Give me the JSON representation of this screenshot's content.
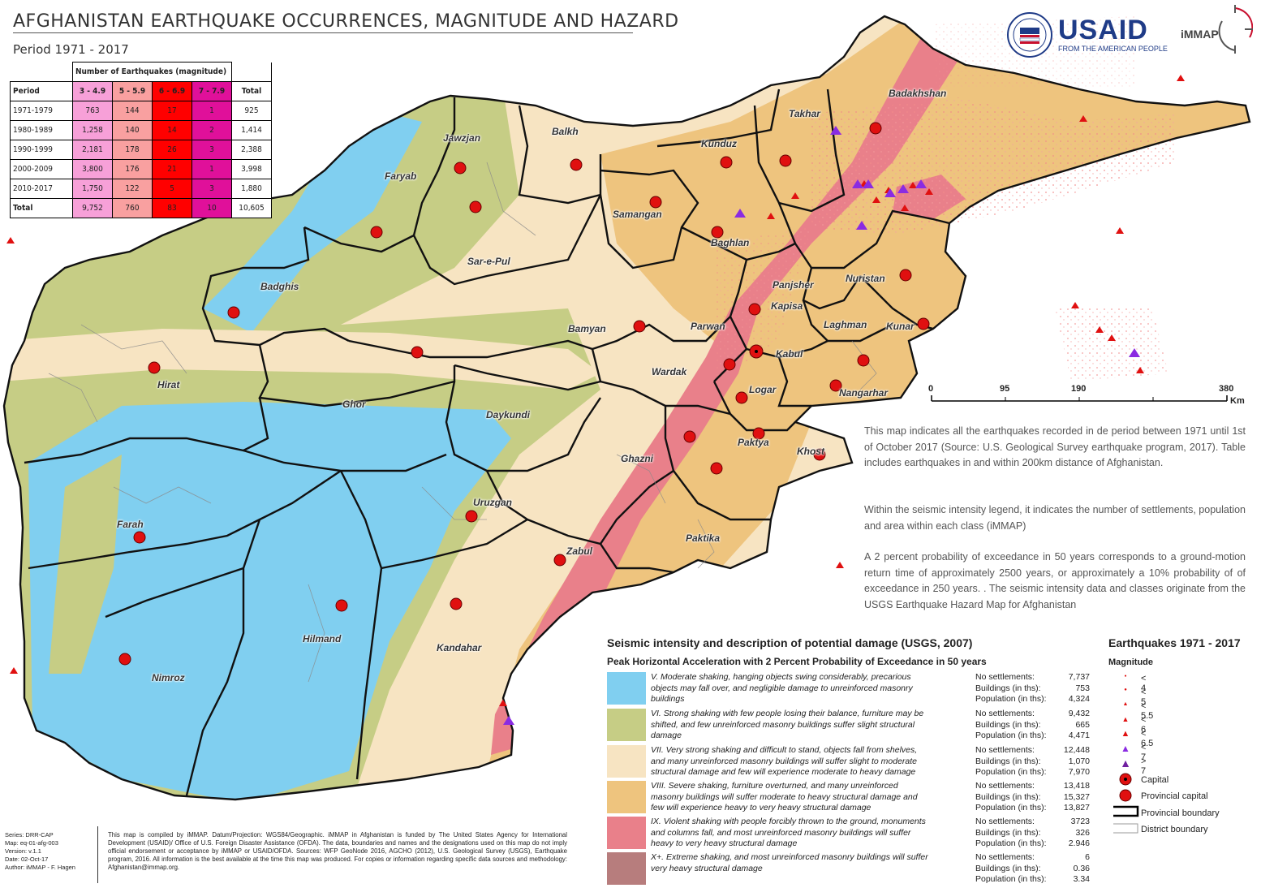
{
  "header": {
    "title": "AFGHANISTAN EARTHQUAKE OCCURRENCES, MAGNITUDE AND HAZARD",
    "period": "Period 1971 - 2017"
  },
  "logos": {
    "usaid": "USAID",
    "usaid_sub": "FROM THE AMERICAN PEOPLE",
    "immap": "iMMAP"
  },
  "table": {
    "group_header": "Number of Earthquakes (magnitude)",
    "columns": [
      "Period",
      "3 - 4.9",
      "5 - 5.9",
      "6 - 6.9",
      "7 - 7.9",
      "Total"
    ],
    "rows": [
      [
        "1971-1979",
        "763",
        "144",
        "17",
        "1",
        "925"
      ],
      [
        "1980-1989",
        "1,258",
        "140",
        "14",
        "2",
        "1,414"
      ],
      [
        "1990-1999",
        "2,181",
        "178",
        "26",
        "3",
        "2,388"
      ],
      [
        "2000-2009",
        "3,800",
        "176",
        "21",
        "1",
        "3,998"
      ],
      [
        "2010-2017",
        "1,750",
        "122",
        "5",
        "3",
        "1,880"
      ],
      [
        "Total",
        "9,752",
        "760",
        "83",
        "10",
        "10,605"
      ]
    ],
    "column_colors": [
      "#ffffff",
      "#f7a0d8",
      "#f9a0a0",
      "#ff0000",
      "#e0109a",
      "#ffffff"
    ]
  },
  "provinces": [
    "Badakhshan",
    "Takhar",
    "Kunduz",
    "Balkh",
    "Jawzjan",
    "Faryab",
    "Samangan",
    "Baghlan",
    "Sar-e-Pul",
    "Badghis",
    "Panjsher",
    "Kapisa",
    "Nuristan",
    "Bamyan",
    "Parwan",
    "Laghman",
    "Kunar",
    "Kabul",
    "Hirat",
    "Wardak",
    "Logar",
    "Nangarhar",
    "Ghor",
    "Daykundi",
    "Paktya",
    "Khost",
    "Ghazni",
    "Uruzgan",
    "Farah",
    "Paktika",
    "Zabul",
    "Hilmand",
    "Kandahar",
    "Nimroz"
  ],
  "scale": {
    "ticks": [
      "0",
      "95",
      "190",
      "380"
    ],
    "unit": "Km"
  },
  "notes": [
    "This map indicates all the earthquakes recorded in de period between 1971 until 1st of October 2017 (Source: U.S. Geological Survey earthquake program, 2017). Table includes earthquakes in and within 200km distance of Afghanistan.",
    "Within the seismic intensity legend, it indicates the number of settlements, population and area within each class (iMMAP)",
    "A 2 percent probability of exceedance in 50 years corresponds to a ground-motion return time of approximately 2500 years, or approximately a 10% probability of of exceedance in 250 years. . The seismic intensity data and classes originate from the USGS Earthquake Hazard Map for Afghanistan"
  ],
  "intensity_legend": {
    "title": "Seismic intensity and description of potential damage (USGS, 2007)",
    "subtitle": "Peak Horizontal Acceleration with 2 Percent Probability of Exceedance in 50 years",
    "classes": [
      {
        "color": "#80cff0",
        "desc": "V. Moderate shaking, hanging objects swing considerably, precarious objects may fall over, and negligible damage to unreinforced masonry buildings",
        "settlements": "7,737",
        "buildings": "753",
        "population": "4,324"
      },
      {
        "color": "#c6cd85",
        "desc": "VI. Strong shaking with few people losing their balance, furniture may be shifted, and few unreinforced masonry buildings suffer slight structural damage",
        "settlements": "9,432",
        "buildings": "665",
        "population": "4,471"
      },
      {
        "color": "#f7e4c2",
        "desc": "VII. Very strong shaking and difficult to stand, objects fall from shelves, and many unreinforced masonry buildings will suffer slight to moderate structural damage and few will experience moderate to heavy damage",
        "settlements": "12,448",
        "buildings": "1,070",
        "population": "7,970"
      },
      {
        "color": "#eec47e",
        "desc": "VIII. Severe shaking, furniture overturned, and many unreinforced masonry buildings will suffer moderate to heavy structural damage and few will experience heavy to very heavy structural damage",
        "settlements": "13,418",
        "buildings": "15,327",
        "population": "13,827"
      },
      {
        "color": "#e9808a",
        "desc": "IX. Violent shaking with people forcibly thrown to the ground, monuments and columns fall, and most unreinforced masonry buildings will suffer heavy to very heavy structural damage",
        "settlements": "3723",
        "buildings": "326",
        "population": "2.946"
      },
      {
        "color": "#b77d7d",
        "desc": "X+. Extreme shaking, and most unreinforced masonry buildings will suffer very heavy structural damage",
        "settlements": "6",
        "buildings": "0.36",
        "population": "3.34"
      }
    ],
    "stat_labels": {
      "settlements": "No settlements:",
      "buildings": "Buildings (in ths):",
      "population": "Population (in ths):"
    }
  },
  "eq_legend": {
    "title": "Earthquakes 1971 - 2017",
    "magnitude_label": "Magnitude",
    "items": [
      "< 4",
      "< 5",
      "< 5.5",
      "< 6",
      "< 6.5",
      "< 7",
      "> 7"
    ],
    "symbols": [
      "Capital",
      "Provincial capital",
      "Provincial boundary",
      "District boundary"
    ]
  },
  "footer": {
    "meta": [
      "Series: DRR-CAP",
      "Map: eq-01-afg-003",
      "Version: v.1.1",
      "Date: 02-Oct-17",
      "Author: iMMAP - F. Hagen"
    ],
    "text": "This map is compiled by iMMAP. Datum/Projection: WGS84/Geographic. iMMAP in Afghanistan is funded by The United States Agency for International Development (USAID)/ Office of U.S. Foreign Disaster Assistance (OFDA). The data, boundaries and names and the designations used on this map do not imply official endorsement or acceptance by iMMAP or USAID/OFDA. Sources: WFP GeoNode 2016, AGCHO (2012), U.S. Geological Survey (USGS), Earthquake program, 2016. All information is the best available at the time this map was produced. For copies or information regarding specific data sources and methodology: Afghanistan@immap.org."
  }
}
